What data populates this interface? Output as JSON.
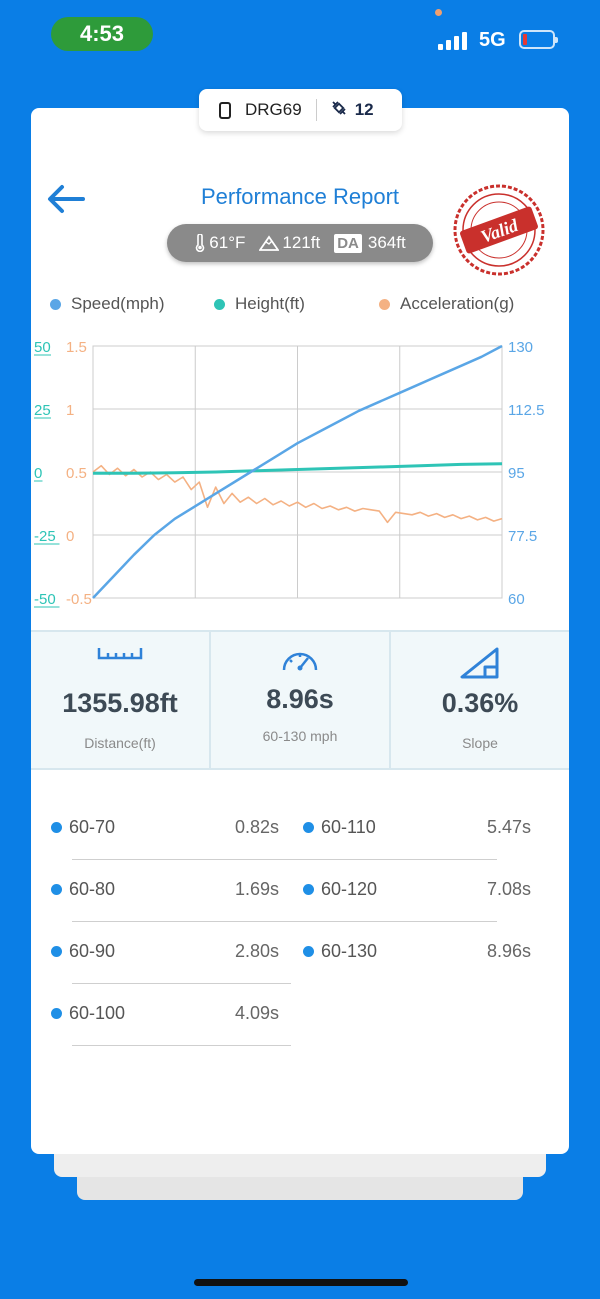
{
  "status_bar": {
    "time": "4:53",
    "network": "5G"
  },
  "device": {
    "name": "DRG69",
    "satellites": "12"
  },
  "header": {
    "title": "Performance Report"
  },
  "conditions": {
    "temperature": "61°F",
    "elevation": "121ft",
    "da_label": "DA",
    "density_altitude": "364ft"
  },
  "stamp": {
    "text": "Valid"
  },
  "legend": [
    {
      "label": "Speed(mph)",
      "color": "#5aa6e6"
    },
    {
      "label": "Height(ft)",
      "color": "#2ec4b6"
    },
    {
      "label": "Acceleration(g)",
      "color": "#f4b183"
    }
  ],
  "chart_data": {
    "type": "line",
    "y_axes": {
      "height_ticks": [
        "50",
        "25",
        "0",
        "-25",
        "-50"
      ],
      "accel_ticks": [
        "1.5",
        "1",
        "0.5",
        "0",
        "-0.5"
      ],
      "speed_ticks": [
        "130",
        "112.5",
        "95",
        "77.5",
        "60"
      ]
    },
    "speed_range": [
      60,
      130
    ],
    "height_range": [
      -50,
      50
    ],
    "accel_range": [
      -0.5,
      1.5
    ],
    "x_range": [
      0,
      1
    ],
    "series": [
      {
        "name": "Speed(mph)",
        "axis": "speed",
        "x": [
          0,
          0.05,
          0.1,
          0.15,
          0.2,
          0.25,
          0.3,
          0.35,
          0.4,
          0.45,
          0.5,
          0.55,
          0.6,
          0.65,
          0.7,
          0.75,
          0.8,
          0.85,
          0.9,
          0.95,
          1.0
        ],
        "y": [
          60,
          66,
          72,
          77.5,
          82,
          85.5,
          89,
          92.5,
          96,
          99.5,
          103,
          106,
          109,
          112,
          114.5,
          117,
          119.5,
          122,
          124.5,
          127,
          130
        ]
      },
      {
        "name": "Height(ft)",
        "axis": "height",
        "x": [
          0,
          0.1,
          0.2,
          0.3,
          0.4,
          0.5,
          0.6,
          0.7,
          0.8,
          0.9,
          1.0
        ],
        "y": [
          -0.5,
          -0.5,
          -0.3,
          0,
          0.5,
          1,
          1.5,
          2,
          2.5,
          3,
          3.3
        ]
      },
      {
        "name": "Acceleration(g)",
        "axis": "accel",
        "x": [
          0,
          0.02,
          0.04,
          0.06,
          0.08,
          0.1,
          0.12,
          0.14,
          0.16,
          0.18,
          0.2,
          0.22,
          0.24,
          0.26,
          0.28,
          0.3,
          0.32,
          0.34,
          0.36,
          0.38,
          0.4,
          0.42,
          0.44,
          0.46,
          0.48,
          0.5,
          0.52,
          0.54,
          0.56,
          0.58,
          0.6,
          0.62,
          0.64,
          0.66,
          0.68,
          0.7,
          0.72,
          0.74,
          0.76,
          0.78,
          0.8,
          0.82,
          0.84,
          0.86,
          0.88,
          0.9,
          0.92,
          0.94,
          0.96,
          0.98,
          1.0
        ],
        "y": [
          0.5,
          0.55,
          0.48,
          0.53,
          0.47,
          0.52,
          0.46,
          0.5,
          0.44,
          0.48,
          0.42,
          0.46,
          0.36,
          0.42,
          0.22,
          0.38,
          0.25,
          0.33,
          0.26,
          0.3,
          0.25,
          0.29,
          0.24,
          0.27,
          0.23,
          0.26,
          0.22,
          0.25,
          0.21,
          0.23,
          0.2,
          0.22,
          0.19,
          0.21,
          0.2,
          0.19,
          0.1,
          0.18,
          0.17,
          0.16,
          0.18,
          0.15,
          0.17,
          0.14,
          0.16,
          0.13,
          0.15,
          0.12,
          0.14,
          0.11,
          0.13
        ]
      }
    ],
    "grid": true
  },
  "stats": [
    {
      "value": "1355.98ft",
      "label": "Distance(ft)"
    },
    {
      "value": "8.96s",
      "label": "60-130 mph"
    },
    {
      "value": "0.36%",
      "label": "Slope"
    }
  ],
  "splits": [
    {
      "range": "60-70",
      "time": "0.82s"
    },
    {
      "range": "60-80",
      "time": "1.69s"
    },
    {
      "range": "60-90",
      "time": "2.80s"
    },
    {
      "range": "60-100",
      "time": "4.09s"
    },
    {
      "range": "60-110",
      "time": "5.47s"
    },
    {
      "range": "60-120",
      "time": "7.08s"
    },
    {
      "range": "60-130",
      "time": "8.96s"
    }
  ]
}
